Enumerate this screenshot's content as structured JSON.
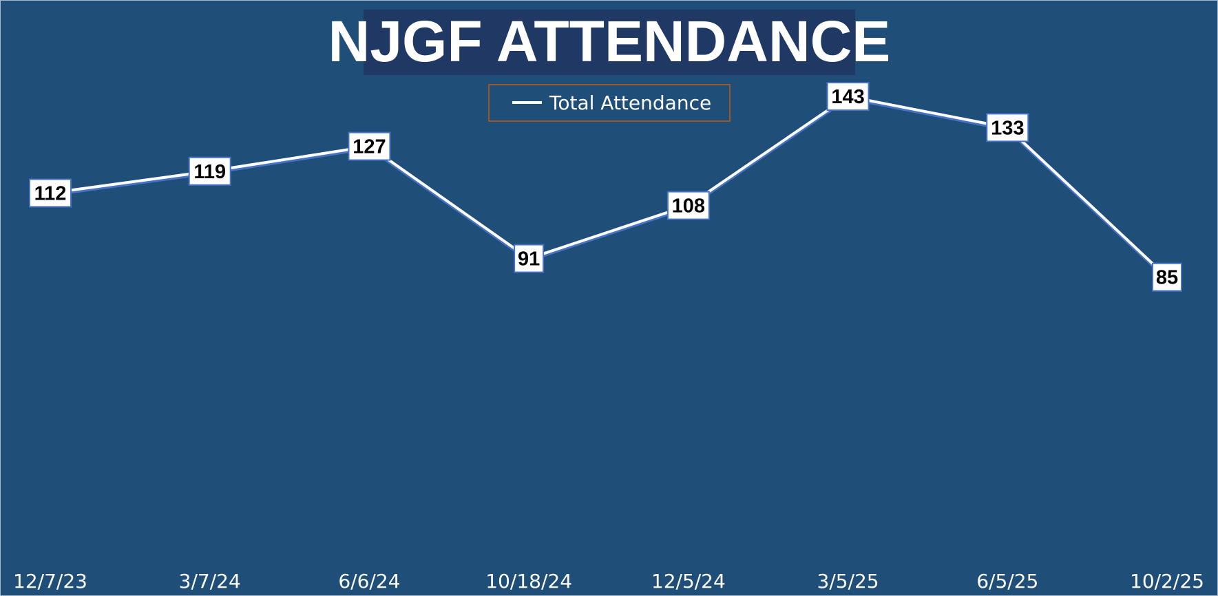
{
  "chart_data": {
    "type": "line",
    "title": "NJGF ATTENDANCE",
    "categories": [
      "12/7/23",
      "3/7/24",
      "6/6/24",
      "10/18/24",
      "12/5/24",
      "3/5/25",
      "6/5/25",
      "10/2/25"
    ],
    "series": [
      {
        "name": "Total Attendance",
        "values": [
          112,
          119,
          127,
          91,
          108,
          143,
          133,
          85
        ],
        "color": "#ffffff",
        "shadow_color": "#4472c4"
      }
    ],
    "data_labels": true,
    "drop_lines": true,
    "legend_position": "top",
    "grid": false,
    "colors": {
      "background": "#1f4e79",
      "title_background": "#203864",
      "legend_border": "#c55a11",
      "label_border": "#4472c4"
    }
  }
}
